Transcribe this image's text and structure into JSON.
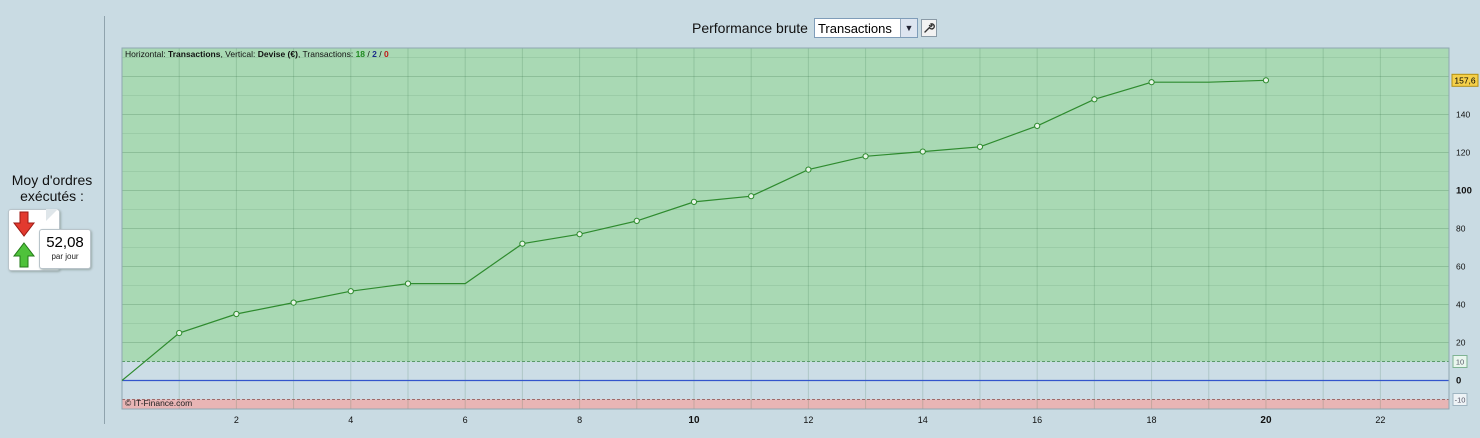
{
  "header": {
    "title": "Performance brute",
    "selector_value": "Transactions",
    "settings_icon": "wrench-icon"
  },
  "left_panel": {
    "label": "Moy d'ordres exécutés :",
    "value": "52,08",
    "unit": "par jour",
    "icons": [
      "arrow-down-icon",
      "arrow-up-icon"
    ]
  },
  "chart_info": {
    "horizontal_prefix": "Horizontal: ",
    "horizontal_value": "Transactions",
    "vertical_prefix": ", Vertical: ",
    "vertical_value": "Devise (€)",
    "transactions_prefix": ", Transactions: ",
    "transactions_total": "18",
    "slash1": " / ",
    "transactions_win": "2",
    "slash2": " / ",
    "transactions_loss": "0",
    "credit": "© IT-Finance.com"
  },
  "colors": {
    "profit_zone": "#a9d9b4",
    "loss_zone": "#e8b5b5",
    "line": "#2e8b2e",
    "zero_line": "#3355cc",
    "last_value_badge": "#f5d04a"
  },
  "chart_data": {
    "type": "line",
    "x": [
      0,
      1,
      2,
      3,
      4,
      5,
      6,
      7,
      8,
      9,
      10,
      11,
      12,
      13,
      14,
      15,
      16,
      17,
      18,
      19,
      20
    ],
    "values": [
      0,
      25,
      35,
      41,
      47,
      51,
      51,
      72,
      77,
      84,
      94,
      97,
      111,
      118,
      120.5,
      123,
      134,
      148,
      157,
      157,
      158
    ],
    "markers_hidden_at": [
      0,
      6,
      19
    ],
    "xlim": [
      0,
      23.2
    ],
    "ylim": [
      -15,
      175
    ],
    "x_ticks": [
      "2",
      "4",
      "6",
      "8",
      "10",
      "12",
      "14",
      "16",
      "18",
      "20",
      "22"
    ],
    "x_ticks_bold": [
      "10",
      "20"
    ],
    "y_ticks": [
      "0",
      "20",
      "40",
      "60",
      "80",
      "100",
      "120",
      "140"
    ],
    "y_ticks_bold": [
      "0",
      "100"
    ],
    "upper_threshold": 10,
    "lower_threshold": -10,
    "upper_threshold_label": "10",
    "lower_threshold_label": "-10",
    "last_value_label": "157,6",
    "grid": true
  }
}
